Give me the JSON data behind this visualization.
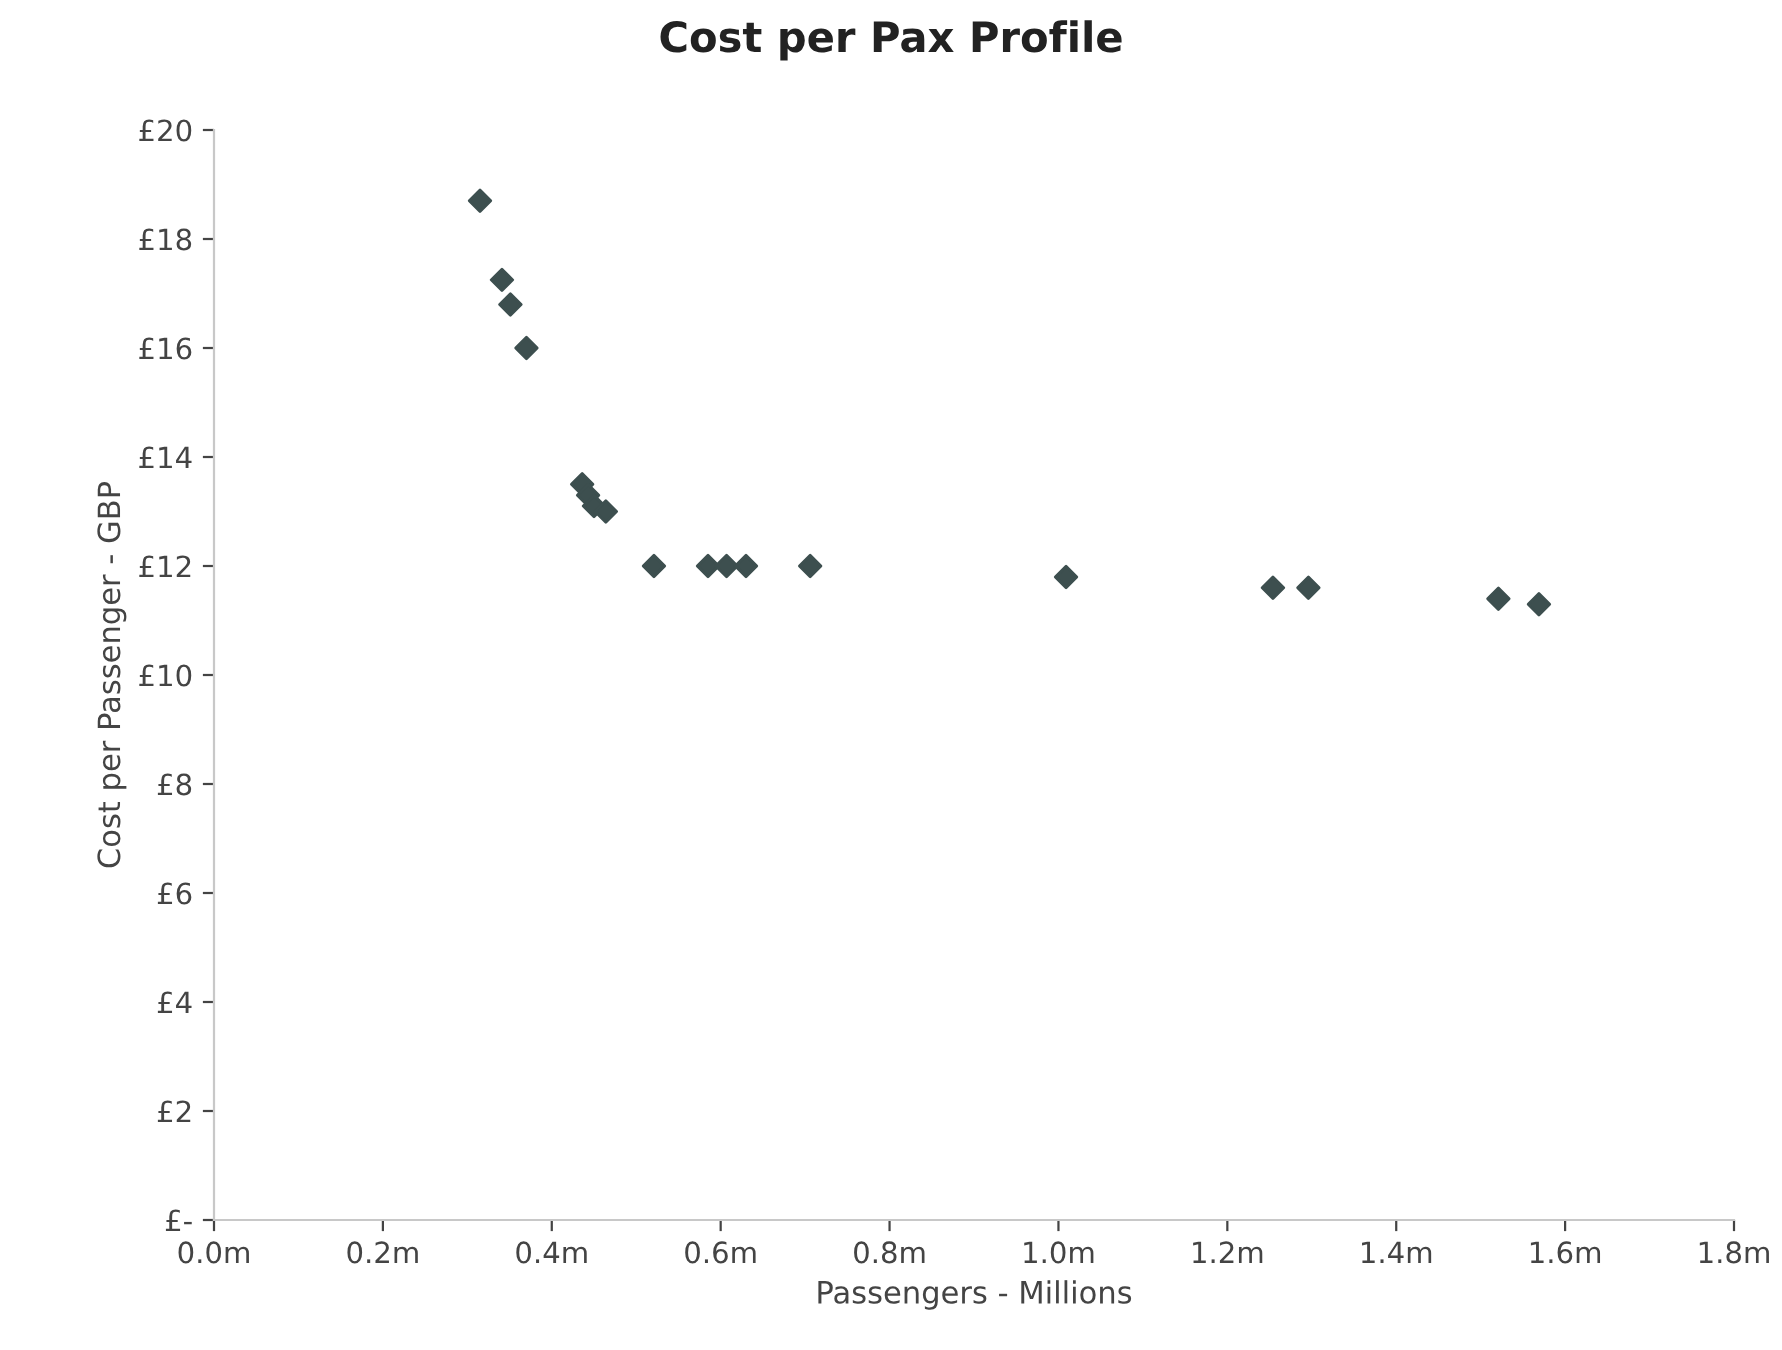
{
  "chart_data": {
    "type": "scatter",
    "title": "Cost per Pax Profile",
    "xlabel": "Passengers - Millions",
    "ylabel": "Cost per Passenger - GBP",
    "x": [
      0.315,
      0.341,
      0.351,
      0.365,
      0.37,
      0.436,
      0.443,
      0.45,
      0.464,
      0.521,
      0.585,
      0.607,
      0.63,
      0.706,
      1.009,
      1.254,
      1.296,
      1.521,
      1.569
    ],
    "series": [
      {
        "color": "#3d4f4f",
        "values": [
          18.7,
          17.25,
          16.8,
          null,
          16.0,
          13.5,
          13.3,
          13.1,
          13.0,
          12.0,
          12.0,
          12.0,
          12.0,
          12.0,
          11.8,
          11.6,
          11.6,
          11.4,
          11.3
        ]
      }
    ],
    "marker": "diamond",
    "grid": false,
    "legend": false,
    "xlim": [
      0,
      1.8
    ],
    "xticks": [
      {
        "value": 0,
        "label": "0.0m"
      },
      {
        "value": 0.2,
        "label": "0.2m"
      },
      {
        "value": 0.4,
        "label": "0.4m"
      },
      {
        "value": 0.6,
        "label": "0.6m"
      },
      {
        "value": 0.8,
        "label": "0.8m"
      },
      {
        "value": 1.0,
        "label": "1.0m"
      },
      {
        "value": 1.2,
        "label": "1.2m"
      },
      {
        "value": 1.4,
        "label": "1.4m"
      },
      {
        "value": 1.6,
        "label": "1.6m"
      },
      {
        "value": 1.8,
        "label": "1.8m"
      }
    ],
    "ylim": [
      0,
      20
    ],
    "yticks": [
      {
        "value": 0,
        "label": "£-"
      },
      {
        "value": 2,
        "label": "£2"
      },
      {
        "value": 4,
        "label": "£4"
      },
      {
        "value": 6,
        "label": "£6"
      },
      {
        "value": 8,
        "label": "£8"
      },
      {
        "value": 10,
        "label": "£10"
      },
      {
        "value": 12,
        "label": "£12"
      },
      {
        "value": 14,
        "label": "£14"
      },
      {
        "value": 16,
        "label": "£16"
      },
      {
        "value": 18,
        "label": "£18"
      },
      {
        "value": 20,
        "label": "£20"
      }
    ]
  }
}
